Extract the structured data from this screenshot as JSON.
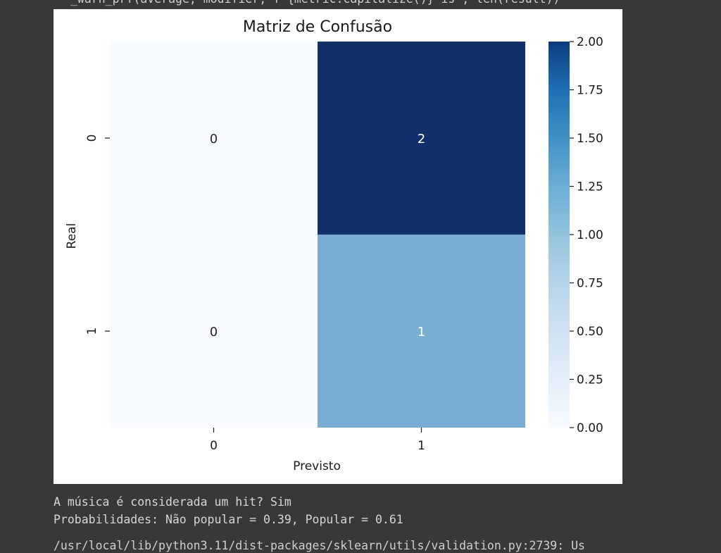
{
  "console": {
    "top_partial_line": "_warn_prf(average, modifier, f\"{metric.capitalize()} is\", len(result))",
    "result_line": "A música é considerada um hit? Sim",
    "probability_line": "Probabilidades: Não popular = 0.39, Popular = 0.61",
    "bottom_partial_line": "/usr/local/lib/python3.11/dist-packages/sklearn/utils/validation.py:2739: Us"
  },
  "chart_data": {
    "type": "heatmap",
    "title": "Matriz de Confusão",
    "xlabel": "Previsto",
    "ylabel": "Real",
    "x_categories": [
      "0",
      "1"
    ],
    "y_categories": [
      "0",
      "1"
    ],
    "matrix": [
      [
        0,
        2
      ],
      [
        0,
        1
      ]
    ],
    "annotations": [
      [
        "0",
        "2"
      ],
      [
        "0",
        "1"
      ]
    ],
    "colormap": "Blues",
    "colorbar": {
      "min": 0.0,
      "max": 2.0,
      "ticks": [
        "0.00",
        "0.25",
        "0.50",
        "0.75",
        "1.00",
        "1.25",
        "1.50",
        "1.75",
        "2.00"
      ]
    },
    "colors": {
      "low": "#f7fbff",
      "mid": "#7aadd3",
      "high": "#12306a"
    }
  }
}
